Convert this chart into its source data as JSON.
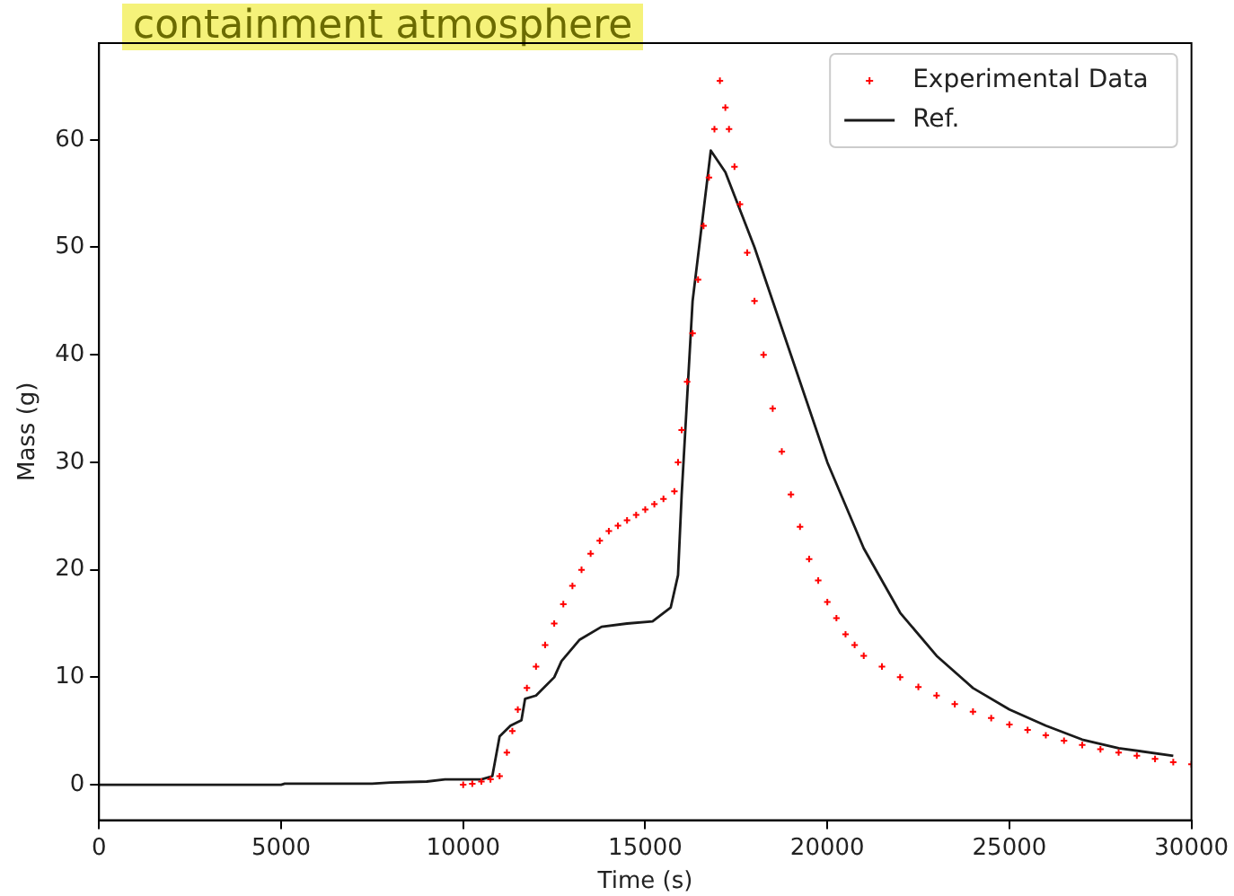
{
  "chart_data": {
    "type": "scatter",
    "title": "containment atmosphere",
    "xlabel": "Time (s)",
    "ylabel": "Mass (g)",
    "xlim": [
      0,
      30000
    ],
    "xticks": [
      0,
      5000,
      10000,
      15000,
      20000,
      25000,
      30000
    ],
    "ylim": [
      -3.3,
      69
    ],
    "yticks": [
      0,
      10,
      20,
      30,
      40,
      50,
      60
    ],
    "grid": false,
    "legend": "top right",
    "series": [
      {
        "name": "Experimental Data",
        "type": "scatter",
        "marker": "cross",
        "color": "#ff0000",
        "x": [
          10000,
          10250,
          10500,
          10750,
          11000,
          11200,
          11350,
          11500,
          11750,
          12000,
          12250,
          12500,
          12750,
          13000,
          13250,
          13500,
          13750,
          14000,
          14250,
          14500,
          14750,
          15000,
          15250,
          15500,
          15800,
          15900,
          16000,
          16150,
          16300,
          16450,
          16600,
          16750,
          16900,
          17050,
          17200,
          17300,
          17450,
          17600,
          17800,
          18000,
          18250,
          18500,
          18750,
          19000,
          19250,
          19500,
          19750,
          20000,
          20250,
          20500,
          20750,
          21000,
          21500,
          22000,
          22500,
          23000,
          23500,
          24000,
          24500,
          25000,
          25500,
          26000,
          26500,
          27000,
          27500,
          28000,
          28500,
          29000,
          29500,
          30000
        ],
        "values": [
          0,
          0.1,
          0.3,
          0.5,
          0.8,
          3,
          5,
          7,
          9,
          11,
          13,
          15,
          16.8,
          18.5,
          20,
          21.5,
          22.7,
          23.6,
          24.1,
          24.6,
          25.1,
          25.6,
          26.1,
          26.6,
          27.3,
          30,
          33,
          37.5,
          42,
          47,
          52,
          56.5,
          61,
          65.5,
          63,
          61,
          57.5,
          54,
          49.5,
          45,
          40,
          35,
          31,
          27,
          24,
          21,
          19,
          17,
          15.5,
          14,
          13,
          12,
          11,
          10,
          9.1,
          8.3,
          7.5,
          6.8,
          6.2,
          5.6,
          5.1,
          4.6,
          4.1,
          3.7,
          3.3,
          3,
          2.7,
          2.4,
          2.1,
          1.9
        ]
      },
      {
        "name": "Ref.",
        "type": "line",
        "marker": "none",
        "color": "#1a1a1a",
        "x": [
          0,
          5000,
          5100,
          7500,
          8000,
          9000,
          9500,
          10500,
          10800,
          11000,
          11300,
          11600,
          11700,
          12000,
          12500,
          12700,
          13200,
          13800,
          14500,
          15200,
          15700,
          15900,
          16000,
          16300,
          16800,
          17200,
          18000,
          19000,
          20000,
          21000,
          22000,
          23000,
          24000,
          25000,
          26000,
          27000,
          28000,
          29500
        ],
        "values": [
          0,
          0,
          0.1,
          0.1,
          0.2,
          0.3,
          0.5,
          0.5,
          0.8,
          4.5,
          5.5,
          6,
          8,
          8.3,
          10,
          11.5,
          13.5,
          14.7,
          15,
          15.2,
          16.5,
          19.5,
          27,
          45,
          59,
          57,
          50,
          40,
          30,
          22,
          16,
          12,
          9,
          7,
          5.5,
          4.2,
          3.4,
          2.7
        ]
      }
    ]
  }
}
